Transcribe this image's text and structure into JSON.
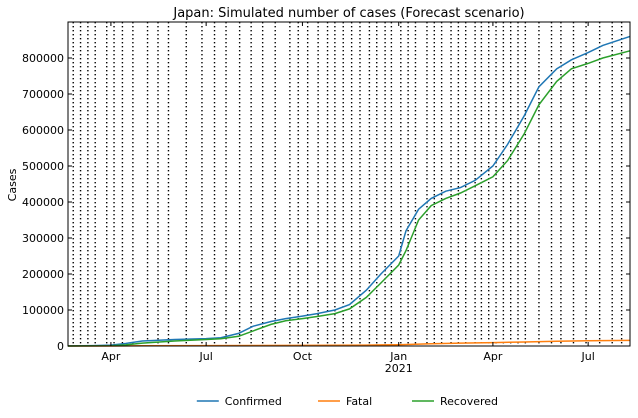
{
  "chart_data": {
    "type": "line",
    "title": "Japan: Simulated number of cases (Forecast scenario)",
    "xlabel": "",
    "ylabel": "Cases",
    "x_axis": "date",
    "xlim": [
      "2020-02-20",
      "2021-08-10"
    ],
    "ylim": [
      0,
      900000
    ],
    "x_tick_labels": [
      {
        "date": "2020-04-01",
        "label": "Apr",
        "sublabel": ""
      },
      {
        "date": "2020-07-01",
        "label": "Jul",
        "sublabel": ""
      },
      {
        "date": "2020-10-01",
        "label": "Oct",
        "sublabel": ""
      },
      {
        "date": "2021-01-01",
        "label": "Jan",
        "sublabel": "2021"
      },
      {
        "date": "2021-04-01",
        "label": "Apr",
        "sublabel": ""
      },
      {
        "date": "2021-07-01",
        "label": "Jul",
        "sublabel": ""
      }
    ],
    "y_ticks": [
      {
        "value": 0,
        "label": "0"
      },
      {
        "value": 100000,
        "label": "100000"
      },
      {
        "value": 200000,
        "label": "200000"
      },
      {
        "value": 300000,
        "label": "300000"
      },
      {
        "value": 400000,
        "label": "400000"
      },
      {
        "value": 500000,
        "label": "500000"
      },
      {
        "value": 600000,
        "label": "600000"
      },
      {
        "value": 700000,
        "label": "700000"
      },
      {
        "value": 800000,
        "label": "800000"
      }
    ],
    "grid": false,
    "phase_change_dates": [
      "2020-02-25",
      "2020-03-03",
      "2020-03-10",
      "2020-03-17",
      "2020-03-28",
      "2020-04-04",
      "2020-04-12",
      "2020-04-22",
      "2020-05-06",
      "2020-05-16",
      "2020-05-26",
      "2020-06-12",
      "2020-06-27",
      "2020-07-09",
      "2020-07-20",
      "2020-08-02",
      "2020-08-13",
      "2020-08-24",
      "2020-09-05",
      "2020-09-19",
      "2020-09-27",
      "2020-10-06",
      "2020-10-16",
      "2020-10-25",
      "2020-11-01",
      "2020-11-09",
      "2020-11-17",
      "2020-11-25",
      "2020-12-04",
      "2020-12-11",
      "2020-12-19",
      "2020-12-25",
      "2021-01-03",
      "2021-01-10",
      "2021-01-17",
      "2021-01-28",
      "2021-02-04",
      "2021-02-11",
      "2021-02-20",
      "2021-02-27",
      "2021-03-06",
      "2021-03-15",
      "2021-03-21",
      "2021-03-28",
      "2021-04-04",
      "2021-04-11",
      "2021-04-18",
      "2021-04-25",
      "2021-05-02",
      "2021-05-15",
      "2021-05-27",
      "2021-06-05",
      "2021-06-17",
      "2021-06-29",
      "2021-07-12",
      "2021-07-24",
      "2021-08-02"
    ],
    "legend_position": "bottom-center",
    "series": [
      {
        "name": "Confirmed",
        "color": "#1f77b4",
        "points": [
          [
            "2020-02-20",
            200
          ],
          [
            "2020-03-15",
            1200
          ],
          [
            "2020-04-01",
            2500
          ],
          [
            "2020-04-15",
            7000
          ],
          [
            "2020-05-01",
            14000
          ],
          [
            "2020-06-01",
            18000
          ],
          [
            "2020-07-01",
            20500
          ],
          [
            "2020-07-15",
            23000
          ],
          [
            "2020-08-01",
            35000
          ],
          [
            "2020-08-15",
            55000
          ],
          [
            "2020-09-01",
            68000
          ],
          [
            "2020-09-15",
            76000
          ],
          [
            "2020-10-01",
            83000
          ],
          [
            "2020-10-15",
            90000
          ],
          [
            "2020-11-01",
            100000
          ],
          [
            "2020-11-15",
            115000
          ],
          [
            "2020-12-01",
            155000
          ],
          [
            "2020-12-15",
            200000
          ],
          [
            "2021-01-01",
            250000
          ],
          [
            "2021-01-08",
            320000
          ],
          [
            "2021-01-20",
            380000
          ],
          [
            "2021-02-01",
            410000
          ],
          [
            "2021-02-15",
            430000
          ],
          [
            "2021-03-01",
            440000
          ],
          [
            "2021-03-15",
            460000
          ],
          [
            "2021-04-01",
            500000
          ],
          [
            "2021-04-15",
            560000
          ],
          [
            "2021-05-01",
            640000
          ],
          [
            "2021-05-15",
            720000
          ],
          [
            "2021-06-01",
            770000
          ],
          [
            "2021-06-15",
            795000
          ],
          [
            "2021-07-01",
            815000
          ],
          [
            "2021-07-15",
            835000
          ],
          [
            "2021-08-10",
            860000
          ]
        ]
      },
      {
        "name": "Fatal",
        "color": "#ff7f0e",
        "points": [
          [
            "2020-02-20",
            0
          ],
          [
            "2020-04-01",
            100
          ],
          [
            "2020-05-01",
            600
          ],
          [
            "2020-07-01",
            1000
          ],
          [
            "2020-10-01",
            1600
          ],
          [
            "2020-12-01",
            2500
          ],
          [
            "2021-01-01",
            3500
          ],
          [
            "2021-02-01",
            6000
          ],
          [
            "2021-03-01",
            8000
          ],
          [
            "2021-04-01",
            9500
          ],
          [
            "2021-05-01",
            11000
          ],
          [
            "2021-06-01",
            13000
          ],
          [
            "2021-07-01",
            14500
          ],
          [
            "2021-08-10",
            15500
          ]
        ]
      },
      {
        "name": "Recovered",
        "color": "#2ca02c",
        "points": [
          [
            "2020-02-20",
            0
          ],
          [
            "2020-04-01",
            500
          ],
          [
            "2020-04-15",
            3000
          ],
          [
            "2020-05-01",
            8000
          ],
          [
            "2020-06-01",
            14000
          ],
          [
            "2020-07-01",
            18000
          ],
          [
            "2020-07-15",
            20000
          ],
          [
            "2020-08-01",
            27000
          ],
          [
            "2020-08-15",
            42000
          ],
          [
            "2020-09-01",
            60000
          ],
          [
            "2020-09-15",
            70000
          ],
          [
            "2020-10-01",
            76000
          ],
          [
            "2020-10-15",
            82000
          ],
          [
            "2020-11-01",
            90000
          ],
          [
            "2020-11-15",
            103000
          ],
          [
            "2020-12-01",
            135000
          ],
          [
            "2020-12-15",
            175000
          ],
          [
            "2021-01-01",
            225000
          ],
          [
            "2021-01-08",
            265000
          ],
          [
            "2021-01-20",
            350000
          ],
          [
            "2021-02-01",
            390000
          ],
          [
            "2021-02-15",
            410000
          ],
          [
            "2021-03-01",
            425000
          ],
          [
            "2021-03-15",
            445000
          ],
          [
            "2021-04-01",
            470000
          ],
          [
            "2021-04-15",
            515000
          ],
          [
            "2021-05-01",
            590000
          ],
          [
            "2021-05-15",
            670000
          ],
          [
            "2021-06-01",
            735000
          ],
          [
            "2021-06-15",
            770000
          ],
          [
            "2021-07-01",
            785000
          ],
          [
            "2021-07-15",
            800000
          ],
          [
            "2021-08-10",
            820000
          ]
        ]
      }
    ]
  }
}
